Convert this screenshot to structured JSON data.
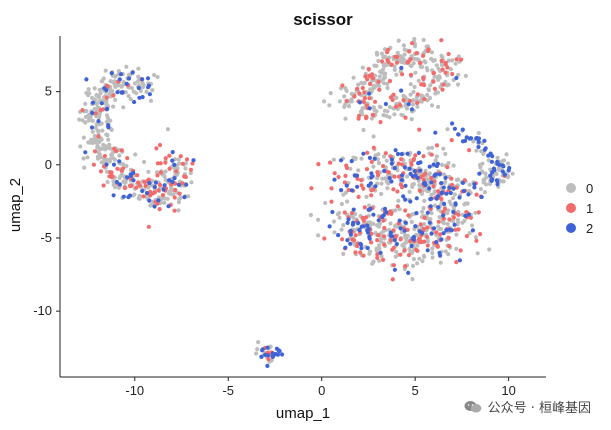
{
  "chart_data": {
    "type": "scatter",
    "title": "scissor",
    "xlabel": "umap_1",
    "ylabel": "umap_2",
    "xlim": [
      -14,
      12
    ],
    "ylim": [
      -14.5,
      8.8
    ],
    "x_ticks": [
      -10,
      -5,
      0,
      5,
      10
    ],
    "y_ticks": [
      5,
      0,
      -5,
      -10
    ],
    "legend_title": "",
    "legend_position": "right",
    "grid": false,
    "series": [
      {
        "name": "0",
        "color": "#bdbdbd"
      },
      {
        "name": "1",
        "color": "#f36b6b"
      },
      {
        "name": "2",
        "color": "#3f63d6"
      }
    ],
    "clusters": [
      {
        "label": "left-top arc",
        "path": [
          [
            -9.3,
            5.2
          ],
          [
            -10.0,
            5.9
          ],
          [
            -10.9,
            5.8
          ],
          [
            -11.6,
            4.8
          ],
          [
            -12.2,
            3.2
          ],
          [
            -12.0,
            1.8
          ],
          [
            -11.5,
            0.8
          ]
        ],
        "spread": 0.45,
        "n": 240,
        "mix": [
          0.78,
          0.08,
          0.14
        ]
      },
      {
        "label": "left-bottom arc",
        "path": [
          [
            -11.5,
            0.3
          ],
          [
            -10.5,
            -1.0
          ],
          [
            -9.4,
            -1.8
          ],
          [
            -8.7,
            -2.3
          ],
          [
            -8.0,
            -1.5
          ],
          [
            -7.6,
            -0.3
          ],
          [
            -8.1,
            0.3
          ]
        ],
        "spread": 0.55,
        "n": 260,
        "mix": [
          0.62,
          0.26,
          0.12
        ]
      },
      {
        "label": "top-right fan",
        "path": [
          [
            1.2,
            4.5
          ],
          [
            2.4,
            5.0
          ],
          [
            3.3,
            6.3
          ],
          [
            4.2,
            7.3
          ],
          [
            5.6,
            7.4
          ],
          [
            6.6,
            6.7
          ],
          [
            6.2,
            5.4
          ],
          [
            5.0,
            4.6
          ],
          [
            4.0,
            3.9
          ],
          [
            2.4,
            3.6
          ]
        ],
        "spread": 0.55,
        "n": 360,
        "mix": [
          0.72,
          0.24,
          0.04
        ]
      },
      {
        "label": "bridge to right cluster",
        "path": [
          [
            6.9,
            2.6
          ],
          [
            7.6,
            2.1
          ],
          [
            8.3,
            1.6
          ],
          [
            8.9,
            0.8
          ]
        ],
        "spread": 0.2,
        "n": 30,
        "mix": [
          0.45,
          0.0,
          0.55
        ]
      },
      {
        "label": "far right cluster",
        "path": [
          [
            9.1,
            0.4
          ],
          [
            9.6,
            -0.3
          ],
          [
            9.3,
            -1.1
          ],
          [
            8.9,
            -0.6
          ]
        ],
        "spread": 0.35,
        "n": 80,
        "mix": [
          0.55,
          0.05,
          0.4
        ]
      },
      {
        "label": "central blob",
        "path": [
          [
            1.6,
            -0.8
          ],
          [
            3.4,
            -0.6
          ],
          [
            5.4,
            -0.2
          ],
          [
            6.6,
            -1.3
          ],
          [
            6.9,
            -3.4
          ],
          [
            5.9,
            -5.0
          ],
          [
            4.1,
            -5.4
          ],
          [
            2.5,
            -4.6
          ],
          [
            1.3,
            -3.0
          ]
        ],
        "spread": 0.9,
        "n": 780,
        "mix": [
          0.56,
          0.26,
          0.18
        ]
      },
      {
        "label": "bottom small cluster",
        "path": [
          [
            -3.0,
            -12.3
          ],
          [
            -2.5,
            -12.8
          ],
          [
            -3.0,
            -13.3
          ],
          [
            -3.3,
            -12.8
          ]
        ],
        "spread": 0.22,
        "n": 40,
        "mix": [
          0.35,
          0.3,
          0.35
        ]
      }
    ]
  },
  "watermark": {
    "icon": "wechat-icon",
    "text": "公众号 · 桓峰基因"
  }
}
